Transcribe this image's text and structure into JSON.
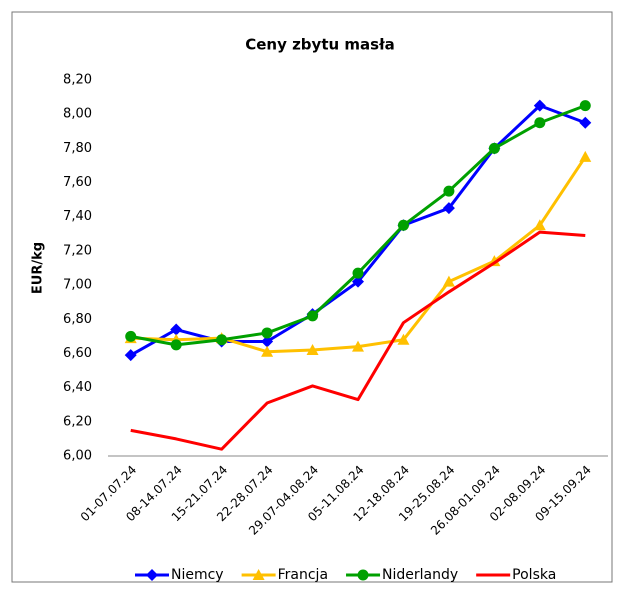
{
  "chart_data": {
    "type": "line",
    "title": "Ceny zbytu masła",
    "y_label": "EUR/kg",
    "categories": [
      "01-07.07.24",
      "08-14.07.24",
      "15-21.07.24",
      "22-28.07.24",
      "29.07-04.08.24",
      "05-11.08.24",
      "12-18.08.24",
      "19-25.08.24",
      "26.08-01.09.24",
      "02-08.09.24",
      "09-15.09.24"
    ],
    "series": [
      {
        "name": "Niemcy",
        "color": "#0000ff",
        "marker": "diamond",
        "values": [
          6.59,
          6.74,
          6.67,
          6.67,
          6.83,
          7.02,
          7.35,
          7.45,
          7.8,
          8.05,
          7.95
        ]
      },
      {
        "name": "Francja",
        "color": "#ffc000",
        "marker": "triangle",
        "values": [
          6.69,
          6.68,
          6.69,
          6.61,
          6.62,
          6.64,
          6.68,
          7.02,
          7.14,
          7.35,
          7.75
        ]
      },
      {
        "name": "Niderlandy",
        "color": "#00a000",
        "marker": "circle",
        "values": [
          6.7,
          6.65,
          6.68,
          6.72,
          6.82,
          7.07,
          7.35,
          7.55,
          7.8,
          7.95,
          8.05
        ]
      },
      {
        "name": "Polska",
        "color": "#ff0000",
        "marker": "none",
        "values": [
          6.15,
          6.1,
          6.04,
          6.31,
          6.41,
          6.33,
          6.78,
          6.96,
          7.13,
          7.31,
          7.29
        ]
      }
    ],
    "ylim": [
      6.0,
      8.2
    ],
    "yticks": [
      {
        "value": 6.0,
        "label": "6,00"
      },
      {
        "value": 6.2,
        "label": "6,20"
      },
      {
        "value": 6.4,
        "label": "6,40"
      },
      {
        "value": 6.6,
        "label": "6,60"
      },
      {
        "value": 6.8,
        "label": "6,80"
      },
      {
        "value": 7.0,
        "label": "7,00"
      },
      {
        "value": 7.2,
        "label": "7,20"
      },
      {
        "value": 7.4,
        "label": "7,40"
      },
      {
        "value": 7.6,
        "label": "7,60"
      },
      {
        "value": 7.8,
        "label": "7,80"
      },
      {
        "value": 8.0,
        "label": "8,00"
      },
      {
        "value": 8.2,
        "label": "8,20"
      }
    ],
    "grid": false,
    "legend": "bottom"
  }
}
